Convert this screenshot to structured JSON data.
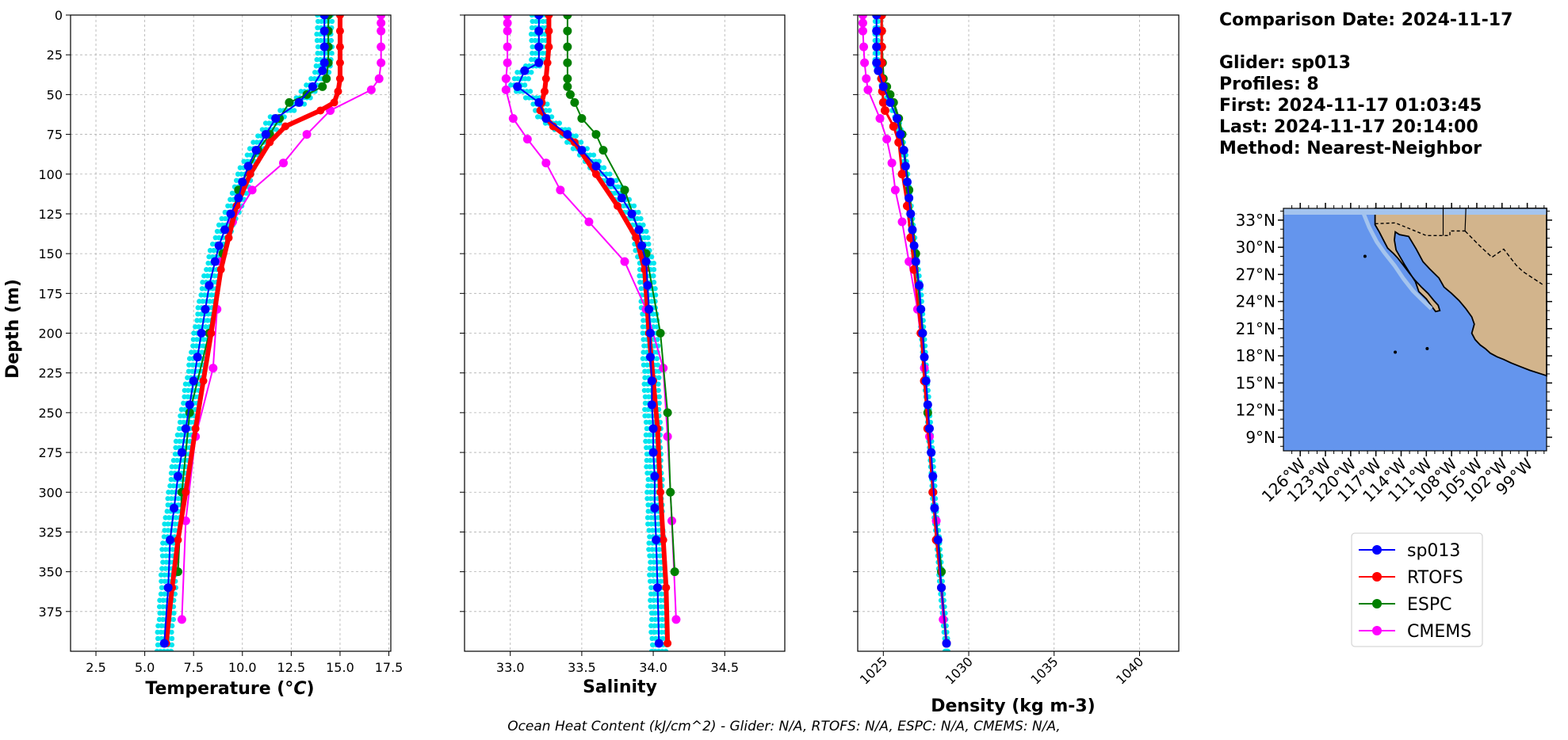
{
  "info": {
    "comparison_date": "Comparison Date: 2024-11-17",
    "glider": "Glider: sp013",
    "profiles": "Profiles: 8",
    "first": "First: 2024-11-17 01:03:45",
    "last": "Last: 2024-11-17 20:14:00",
    "method": "Method: Nearest-Neighbor"
  },
  "footer": "Ocean Heat Content (kJ/cm^2) - Glider: N/A,  RTOFS: N/A,  ESPC: N/A,  CMEMS: N/A,",
  "legend": [
    "sp013",
    "RTOFS",
    "ESPC",
    "CMEMS"
  ],
  "colors": {
    "sp013": "#0000ff",
    "RTOFS": "#ff0000",
    "ESPC": "#008000",
    "CMEMS": "#ff00ff",
    "raw": "#00e5ee",
    "ocean": "#6495ed",
    "shelf": "#a4c4ee",
    "land": "#d2b48c"
  },
  "map": {
    "lat_ticks": [
      "33°N",
      "30°N",
      "27°N",
      "24°N",
      "21°N",
      "18°N",
      "15°N",
      "12°N",
      "9°N"
    ],
    "lon_ticks": [
      "126°W",
      "123°W",
      "120°W",
      "117°W",
      "114°W",
      "111°W",
      "108°W",
      "105°W",
      "102°W",
      "99°W"
    ]
  },
  "chart_data": [
    {
      "type": "line",
      "xlabel": "Temperature (°C)",
      "ylabel": "Depth (m)",
      "xlim": [
        1.2,
        17.6
      ],
      "ylim": [
        400,
        0
      ],
      "xticks": [
        "2.5",
        "5.0",
        "7.5",
        "10.0",
        "12.5",
        "15.0",
        "17.5"
      ],
      "yticks": [
        "0",
        "25",
        "50",
        "75",
        "100",
        "125",
        "150",
        "175",
        "200",
        "225",
        "250",
        "275",
        "300",
        "325",
        "350",
        "375"
      ],
      "series": [
        {
          "name": "sp013",
          "x": [
            14.2,
            14.2,
            14.2,
            14.2,
            14.1,
            13.6,
            12.9,
            11.7,
            11.2,
            10.7,
            10.3,
            10.0,
            9.8,
            9.4,
            9.1,
            8.8,
            8.6,
            8.3,
            8.1,
            7.9,
            7.7,
            7.5,
            7.3,
            7.1,
            6.9,
            6.7,
            6.5,
            6.3,
            6.2,
            6.0
          ],
          "y": [
            0,
            10,
            20,
            30,
            35,
            45,
            55,
            65,
            75,
            85,
            95,
            105,
            115,
            125,
            135,
            145,
            155,
            170,
            185,
            200,
            215,
            230,
            245,
            260,
            275,
            290,
            310,
            330,
            360,
            395
          ]
        },
        {
          "name": "RTOFS",
          "x": [
            15.0,
            15.0,
            15.0,
            15.0,
            15.0,
            14.9,
            14.7,
            14.0,
            12.2,
            11.4,
            10.4,
            9.7,
            9.3,
            8.9,
            8.4,
            8.0,
            7.6,
            7.1,
            6.7,
            6.4,
            6.1
          ],
          "y": [
            0,
            10,
            20,
            30,
            40,
            48,
            55,
            60,
            70,
            80,
            100,
            120,
            140,
            160,
            200,
            230,
            260,
            300,
            330,
            360,
            395
          ]
        },
        {
          "name": "ESPC",
          "x": [
            14.4,
            14.4,
            14.4,
            14.4,
            14.3,
            14.1,
            13.3,
            12.4,
            11.9,
            11.4,
            10.8,
            9.8,
            9.0,
            8.3,
            7.3,
            6.9,
            6.7
          ],
          "y": [
            0,
            10,
            20,
            30,
            40,
            45,
            50,
            55,
            65,
            75,
            85,
            110,
            150,
            200,
            250,
            300,
            350
          ]
        },
        {
          "name": "CMEMS",
          "x": [
            17.1,
            17.1,
            17.1,
            17.1,
            17.1,
            17.0,
            16.6,
            14.5,
            13.3,
            12.1,
            10.5,
            9.5,
            8.9,
            8.7,
            8.5,
            7.6,
            7.1,
            6.9
          ],
          "y": [
            0,
            5,
            10,
            20,
            30,
            40,
            47,
            60,
            75,
            93,
            110,
            130,
            155,
            185,
            222,
            265,
            318,
            380
          ]
        }
      ]
    },
    {
      "type": "line",
      "xlabel": "Salinity",
      "ylabel": "",
      "xlim": [
        32.68,
        34.92
      ],
      "ylim": [
        400,
        0
      ],
      "xticks": [
        "33.0",
        "33.5",
        "34.0",
        "34.5"
      ],
      "series": [
        {
          "name": "sp013",
          "x": [
            33.2,
            33.2,
            33.2,
            33.2,
            33.1,
            33.05,
            33.2,
            33.25,
            33.4,
            33.5,
            33.6,
            33.7,
            33.78,
            33.85,
            33.9,
            33.92,
            33.95,
            33.96,
            33.97,
            33.98,
            33.98,
            33.99,
            33.99,
            34.0,
            34.0,
            34.01,
            34.01,
            34.02,
            34.03,
            34.04
          ],
          "y": [
            0,
            10,
            20,
            30,
            35,
            45,
            55,
            65,
            75,
            85,
            95,
            105,
            115,
            125,
            135,
            145,
            155,
            170,
            185,
            200,
            215,
            230,
            245,
            260,
            275,
            290,
            310,
            330,
            360,
            395
          ]
        },
        {
          "name": "RTOFS",
          "x": [
            33.27,
            33.27,
            33.27,
            33.26,
            33.25,
            33.24,
            33.22,
            33.21,
            33.3,
            33.45,
            33.6,
            33.75,
            33.88,
            33.94,
            33.97,
            34.0,
            34.03,
            34.05,
            34.07,
            34.09,
            34.1
          ],
          "y": [
            0,
            10,
            20,
            30,
            40,
            48,
            55,
            60,
            70,
            80,
            100,
            120,
            140,
            160,
            200,
            230,
            260,
            300,
            330,
            360,
            395
          ]
        },
        {
          "name": "ESPC",
          "x": [
            33.4,
            33.4,
            33.4,
            33.4,
            33.4,
            33.4,
            33.42,
            33.45,
            33.5,
            33.6,
            33.65,
            33.8,
            33.95,
            34.05,
            34.1,
            34.12,
            34.15
          ],
          "y": [
            0,
            10,
            20,
            30,
            40,
            45,
            50,
            55,
            65,
            75,
            85,
            110,
            150,
            200,
            250,
            300,
            350
          ]
        },
        {
          "name": "CMEMS",
          "x": [
            32.98,
            32.98,
            32.98,
            32.98,
            32.98,
            32.97,
            32.97,
            33.02,
            33.12,
            33.25,
            33.35,
            33.55,
            33.8,
            33.95,
            34.07,
            34.1,
            34.13,
            34.16
          ],
          "y": [
            0,
            5,
            10,
            20,
            30,
            40,
            47,
            65,
            78,
            93,
            110,
            130,
            155,
            185,
            222,
            265,
            318,
            380
          ]
        }
      ]
    },
    {
      "type": "line",
      "xlabel": "Density (kg m-3)",
      "ylabel": "",
      "xlim": [
        1023.5,
        1042.3
      ],
      "ylim": [
        400,
        0
      ],
      "xticks": [
        "1025",
        "1030",
        "1035",
        "1040"
      ],
      "series": [
        {
          "name": "sp013",
          "x": [
            1024.6,
            1024.6,
            1024.6,
            1024.6,
            1024.7,
            1025.0,
            1025.4,
            1025.8,
            1026.0,
            1026.2,
            1026.3,
            1026.4,
            1026.5,
            1026.6,
            1026.7,
            1026.8,
            1026.9,
            1027.1,
            1027.2,
            1027.3,
            1027.4,
            1027.5,
            1027.6,
            1027.7,
            1027.8,
            1027.9,
            1028.0,
            1028.2,
            1028.4,
            1028.7
          ],
          "y": [
            0,
            10,
            20,
            30,
            35,
            45,
            55,
            65,
            75,
            85,
            95,
            105,
            115,
            125,
            135,
            145,
            155,
            170,
            185,
            200,
            215,
            230,
            245,
            260,
            275,
            290,
            310,
            330,
            360,
            395
          ]
        },
        {
          "name": "RTOFS",
          "x": [
            1024.9,
            1024.9,
            1024.9,
            1024.9,
            1024.9,
            1024.95,
            1025.0,
            1025.1,
            1025.6,
            1025.9,
            1026.1,
            1026.4,
            1026.6,
            1026.8,
            1027.2,
            1027.4,
            1027.6,
            1027.9,
            1028.1,
            1028.4,
            1028.7
          ],
          "y": [
            0,
            10,
            20,
            30,
            40,
            48,
            55,
            60,
            70,
            80,
            100,
            120,
            140,
            160,
            200,
            230,
            260,
            300,
            330,
            360,
            395
          ]
        },
        {
          "name": "ESPC",
          "x": [
            1024.9,
            1024.9,
            1024.9,
            1024.95,
            1025.0,
            1025.2,
            1025.4,
            1025.6,
            1025.9,
            1026.1,
            1026.2,
            1026.5,
            1026.9,
            1027.3,
            1027.6,
            1027.9,
            1028.4
          ],
          "y": [
            0,
            10,
            20,
            30,
            40,
            45,
            50,
            55,
            65,
            75,
            85,
            110,
            150,
            200,
            250,
            300,
            350
          ]
        },
        {
          "name": "CMEMS",
          "x": [
            1023.8,
            1023.8,
            1023.8,
            1023.85,
            1023.9,
            1024.0,
            1024.1,
            1024.8,
            1025.2,
            1025.5,
            1025.7,
            1026.1,
            1026.5,
            1027.0,
            1027.4,
            1027.7,
            1028.1,
            1028.5
          ],
          "y": [
            0,
            5,
            10,
            20,
            30,
            40,
            47,
            65,
            78,
            93,
            110,
            130,
            155,
            185,
            222,
            265,
            318,
            380
          ]
        }
      ]
    }
  ]
}
